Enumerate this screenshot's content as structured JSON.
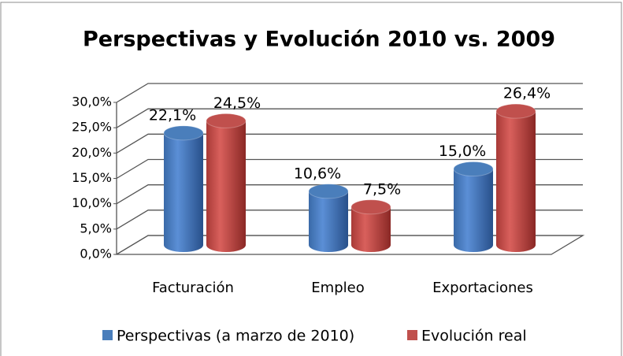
{
  "chart_data": {
    "type": "bar3d",
    "title": "Perspectivas y Evolución 2010 vs. 2009",
    "categories": [
      "Facturación",
      "Empleo",
      "Exportaciones"
    ],
    "series": [
      {
        "name": "Perspectivas (a marzo de 2010)",
        "color": "#4a7ebb",
        "values": [
          22.1,
          10.6,
          15.0
        ],
        "value_labels": [
          "22,1%",
          "10,6%",
          "15,0%"
        ]
      },
      {
        "name": "Evolución real",
        "color": "#c0504d",
        "values": [
          24.5,
          7.5,
          26.4
        ],
        "value_labels": [
          "24,5%",
          "7,5%",
          "26,4%"
        ]
      }
    ],
    "ylim": [
      0,
      30
    ],
    "yticks": [
      {
        "value": 0,
        "label": "0,0%"
      },
      {
        "value": 5,
        "label": "5,0%"
      },
      {
        "value": 10,
        "label": "10,0%"
      },
      {
        "value": 15,
        "label": "15,0%"
      },
      {
        "value": 20,
        "label": "20,0%"
      },
      {
        "value": 25,
        "label": "25,0%"
      },
      {
        "value": 30,
        "label": "30,0%"
      }
    ],
    "grid": true,
    "legend": "bottom"
  }
}
